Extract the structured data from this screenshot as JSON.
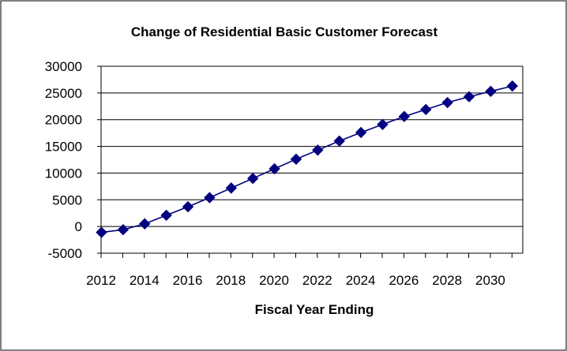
{
  "chart_data": {
    "type": "line",
    "title": "Change of Residential Basic Customer Forecast",
    "xlabel": "Fiscal Year Ending",
    "ylabel": "",
    "x": [
      2012,
      2013,
      2014,
      2015,
      2016,
      2017,
      2018,
      2019,
      2020,
      2021,
      2022,
      2023,
      2024,
      2025,
      2026,
      2027,
      2028,
      2029,
      2030,
      2031
    ],
    "series": [
      {
        "name": "",
        "values": [
          -1100,
          -600,
          500,
          2100,
          3700,
          5400,
          7200,
          9000,
          10800,
          12600,
          14300,
          16000,
          17600,
          19100,
          20600,
          21900,
          23200,
          24300,
          25300,
          26300
        ],
        "color": "#000080",
        "marker": "diamond"
      }
    ],
    "x_tick_labels": [
      "2012",
      "2014",
      "2016",
      "2018",
      "2020",
      "2022",
      "2024",
      "2026",
      "2028",
      "2030"
    ],
    "y_tick_labels": [
      "-5000",
      "0",
      "5000",
      "10000",
      "15000",
      "20000",
      "25000",
      "30000"
    ],
    "ylim": [
      -5000,
      30000
    ],
    "xlim": [
      2012,
      2031
    ],
    "grid": "horizontal",
    "legend": "none"
  }
}
